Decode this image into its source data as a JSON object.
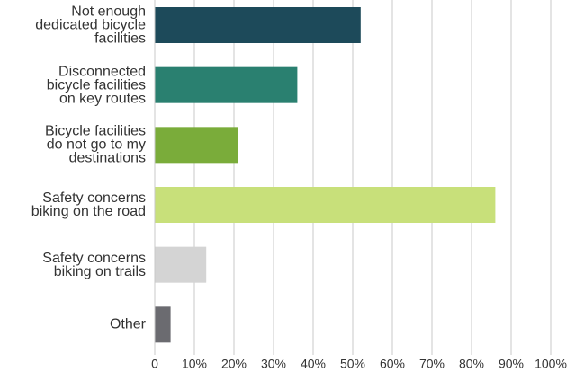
{
  "chart_data": {
    "type": "bar",
    "orientation": "horizontal",
    "categories": [
      "Not enough\ndedicated bicycle\nfacilities",
      "Disconnected\nbicycle facilities\non key routes",
      "Bicycle facilities\ndo not go to my\ndestinations",
      "Safety concerns\nbiking on the road",
      "Safety concerns\nbiking on trails",
      "Other"
    ],
    "values": [
      52,
      36,
      21,
      86,
      13,
      4
    ],
    "colors": [
      "#1d4a5a",
      "#2a8070",
      "#7aac3a",
      "#c8e07a",
      "#d4d4d4",
      "#6b6b70"
    ],
    "xlim": [
      0,
      100
    ],
    "xticks": [
      0,
      {
        "value": 10,
        "label": "10%"
      },
      {
        "value": 20,
        "label": "20%"
      },
      {
        "value": 30,
        "label": "30%"
      },
      {
        "value": 40,
        "label": "40%"
      },
      {
        "value": 50,
        "label": "50%"
      },
      {
        "value": 60,
        "label": "60%"
      },
      {
        "value": 70,
        "label": "70%"
      },
      {
        "value": 80,
        "label": "80%"
      },
      {
        "value": 90,
        "label": "90%"
      },
      {
        "value": 100,
        "label": "100%"
      }
    ],
    "grid": true
  }
}
